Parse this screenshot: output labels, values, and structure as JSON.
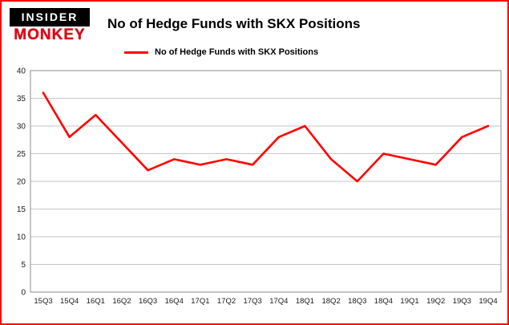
{
  "brand": {
    "line1": "INSIDER",
    "line2": "MONKEY"
  },
  "legend": {
    "label": "No of Hedge Funds with SKX Positions"
  },
  "colors": {
    "line": "#ff0000",
    "grid": "#c6c6c6",
    "plot_border": "#8c8c8c",
    "tick_text": "#1a1a1a",
    "frame_border": "#ff0000"
  },
  "chart_data": {
    "type": "line",
    "title": "No of Hedge Funds with SKX Positions",
    "categories": [
      "15Q3",
      "15Q4",
      "16Q1",
      "16Q2",
      "16Q3",
      "16Q4",
      "17Q1",
      "17Q2",
      "17Q3",
      "17Q4",
      "18Q1",
      "18Q2",
      "18Q3",
      "18Q4",
      "19Q1",
      "19Q2",
      "19Q3",
      "19Q4"
    ],
    "series": [
      {
        "name": "No of Hedge Funds with SKX Positions",
        "color": "#ff0000",
        "values": [
          36,
          28,
          32,
          27,
          22,
          24,
          23,
          24,
          23,
          28,
          30,
          24,
          20,
          25,
          24,
          23,
          28,
          30
        ]
      }
    ],
    "xlabel": "",
    "ylabel": "",
    "ylim": [
      0,
      40
    ],
    "yticks": [
      0,
      5,
      10,
      15,
      20,
      25,
      30,
      35,
      40
    ],
    "grid": true,
    "legend_position": "top-left"
  }
}
